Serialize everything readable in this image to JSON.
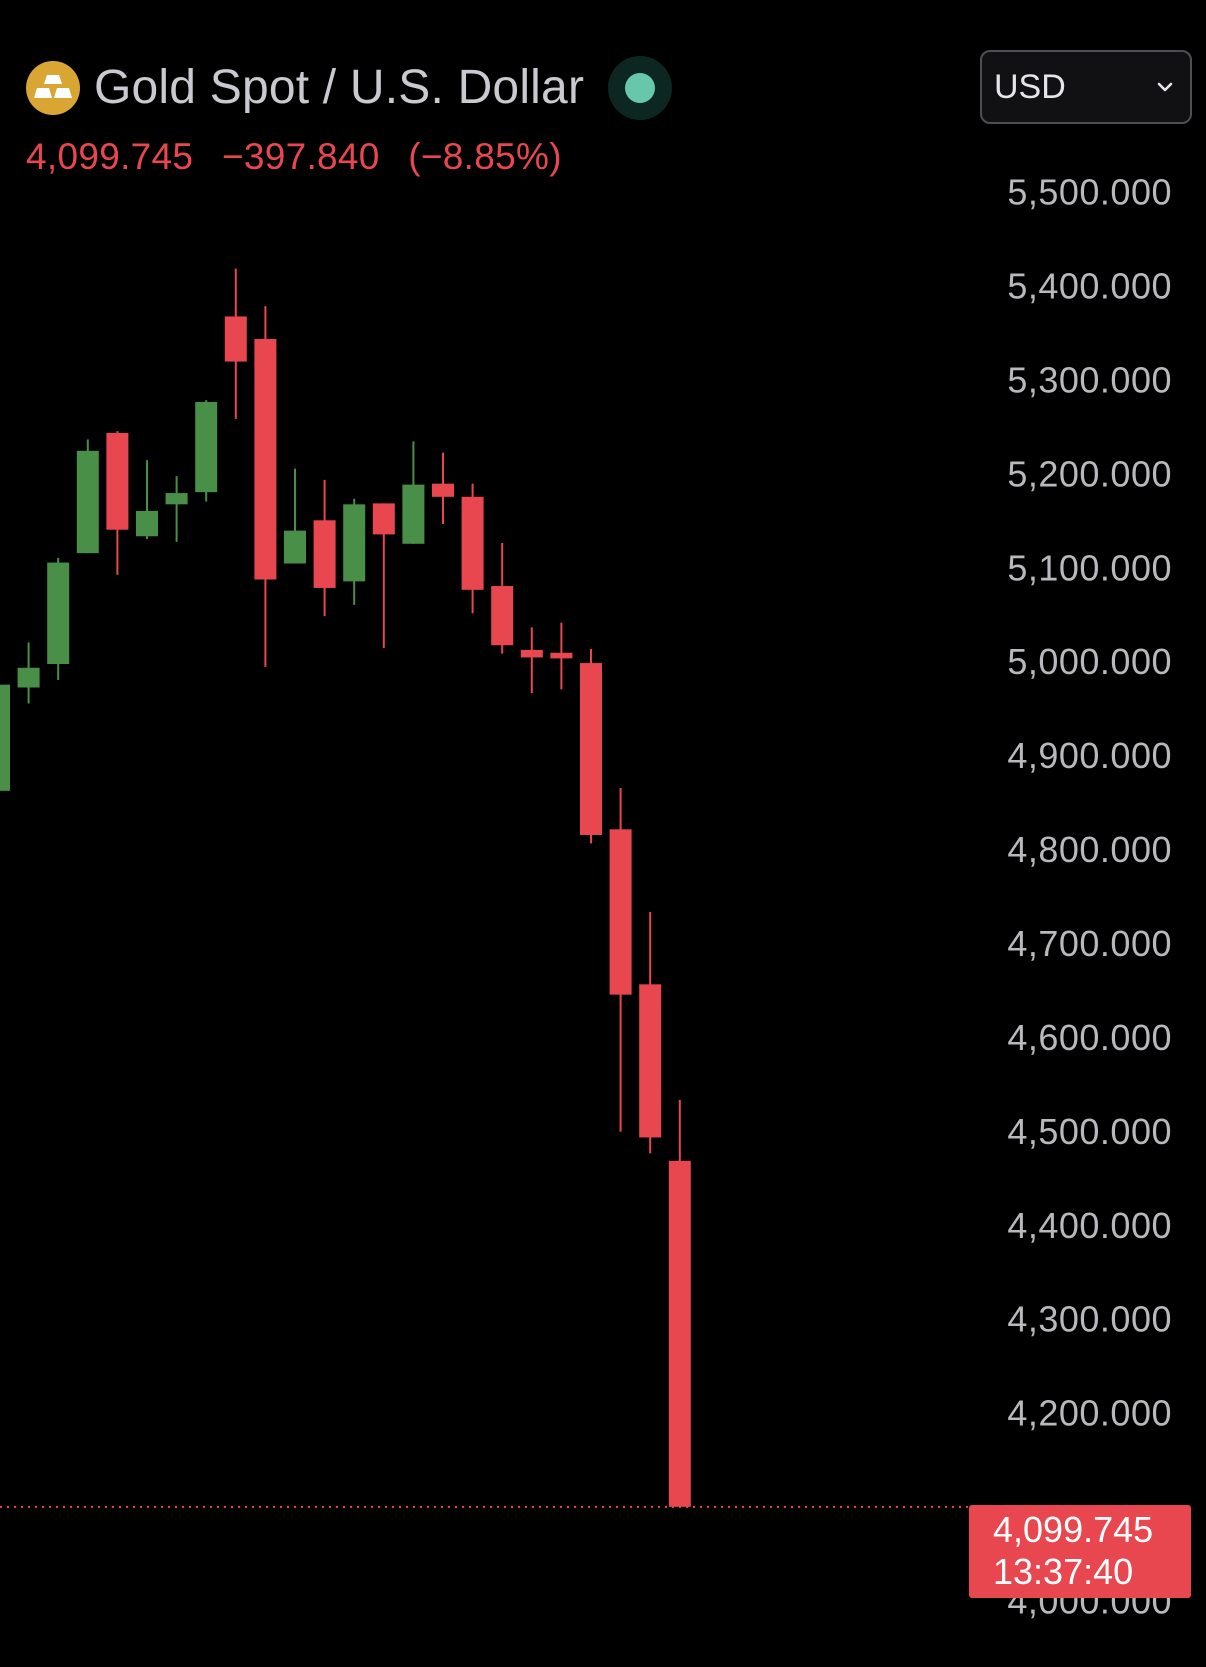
{
  "header": {
    "symbol_title": "Gold Spot / U.S. Dollar",
    "last_price": "4,099.745",
    "change": "−397.840",
    "change_percent": "(−8.85%)",
    "market_status": "open",
    "icon": "gold-bars-icon"
  },
  "currency_select": {
    "value": "USD",
    "icon": "chevron-down-icon"
  },
  "price_tag": {
    "price": "4,099.745",
    "countdown": "13:37:40"
  },
  "colors": {
    "background": "#000000",
    "up": "#4a8f47",
    "down": "#e8474f",
    "axis_text": "#b8b8bd",
    "gold": "#d9a633",
    "status": "#67c7a9"
  },
  "chart_data": {
    "type": "candlestick",
    "title": "Gold Spot / U.S. Dollar",
    "ylim": [
      3975,
      5590
    ],
    "y_ticks": [
      {
        "value": 5500,
        "label": "5,500.000"
      },
      {
        "value": 5400,
        "label": "5,400.000"
      },
      {
        "value": 5300,
        "label": "5,300.000"
      },
      {
        "value": 5200,
        "label": "5,200.000"
      },
      {
        "value": 5100,
        "label": "5,100.000"
      },
      {
        "value": 5000,
        "label": "5,000.000"
      },
      {
        "value": 4900,
        "label": "4,900.000"
      },
      {
        "value": 4800,
        "label": "4,800.000"
      },
      {
        "value": 4700,
        "label": "4,700.000"
      },
      {
        "value": 4600,
        "label": "4,600.000"
      },
      {
        "value": 4500,
        "label": "4,500.000"
      },
      {
        "value": 4400,
        "label": "4,400.000"
      },
      {
        "value": 4300,
        "label": "4,300.000"
      },
      {
        "value": 4200,
        "label": "4,200.000"
      },
      {
        "value": 4000,
        "label": "4,000.000"
      }
    ],
    "last_price": 4099.745,
    "candles": [
      {
        "open": 4862,
        "high": 4975,
        "low": 4862,
        "close": 4975
      },
      {
        "open": 4972,
        "high": 5020,
        "low": 4955,
        "close": 4993
      },
      {
        "open": 4997,
        "high": 5110,
        "low": 4980,
        "close": 5105
      },
      {
        "open": 5115,
        "high": 5236,
        "low": 5115,
        "close": 5224
      },
      {
        "open": 5243,
        "high": 5245,
        "low": 5092,
        "close": 5140
      },
      {
        "open": 5133,
        "high": 5214,
        "low": 5130,
        "close": 5160
      },
      {
        "open": 5167,
        "high": 5197,
        "low": 5127,
        "close": 5179
      },
      {
        "open": 5180,
        "high": 5278,
        "low": 5170,
        "close": 5276
      },
      {
        "open": 5367,
        "high": 5418,
        "low": 5258,
        "close": 5319
      },
      {
        "open": 5343,
        "high": 5378,
        "low": 4994,
        "close": 5087
      },
      {
        "open": 5104,
        "high": 5205,
        "low": 5104,
        "close": 5139
      },
      {
        "open": 5150,
        "high": 5193,
        "low": 5048,
        "close": 5078
      },
      {
        "open": 5085,
        "high": 5173,
        "low": 5060,
        "close": 5167
      },
      {
        "open": 5168,
        "high": 5168,
        "low": 5014,
        "close": 5135
      },
      {
        "open": 5125,
        "high": 5234,
        "low": 5125,
        "close": 5188
      },
      {
        "open": 5189,
        "high": 5222,
        "low": 5146,
        "close": 5175
      },
      {
        "open": 5175,
        "high": 5189,
        "low": 5051,
        "close": 5076
      },
      {
        "open": 5080,
        "high": 5126,
        "low": 5008,
        "close": 5017
      },
      {
        "open": 5012,
        "high": 5036,
        "low": 4966,
        "close": 5004
      },
      {
        "open": 5009,
        "high": 5041,
        "low": 4970,
        "close": 5003
      },
      {
        "open": 4998,
        "high": 5013,
        "low": 4806,
        "close": 4815
      },
      {
        "open": 4821,
        "high": 4865,
        "low": 4499,
        "close": 4645
      },
      {
        "open": 4656,
        "high": 4733,
        "low": 4476,
        "close": 4493
      },
      {
        "open": 4468,
        "high": 4533,
        "low": 4099.745,
        "close": 4099.745
      }
    ]
  }
}
